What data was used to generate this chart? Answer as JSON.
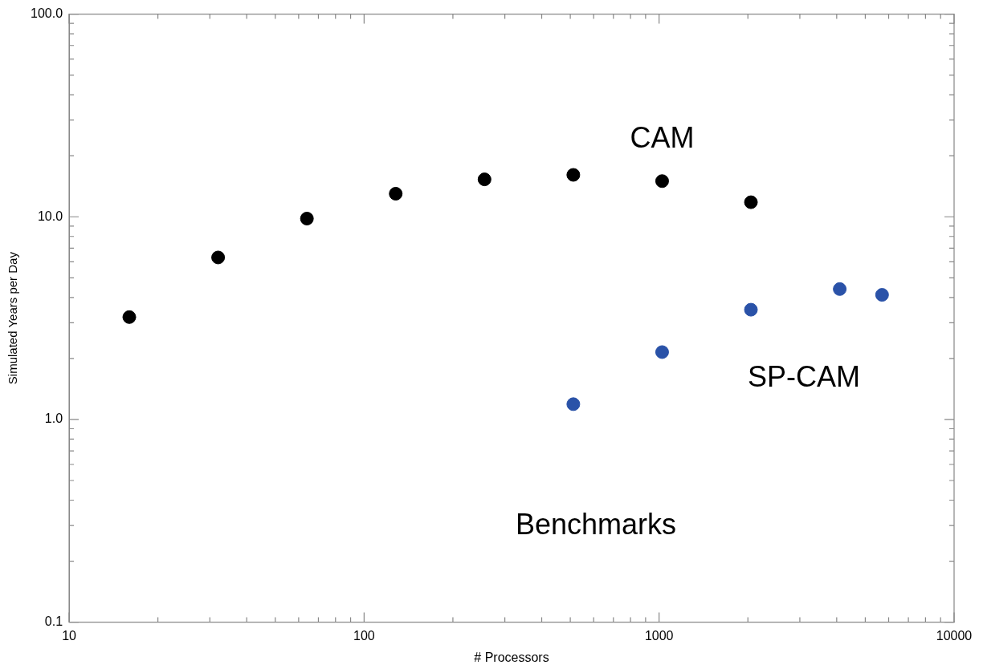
{
  "chart_data": {
    "type": "scatter",
    "xlabel": "# Processors",
    "ylabel": "Simulated Years per Day",
    "log": "xy",
    "grid": false,
    "legend": false,
    "marker": "circle",
    "xlim": [
      10,
      10000
    ],
    "ylim": [
      0.1,
      100
    ],
    "xticks": [
      10,
      {
        "value": 20,
        "label": null
      },
      {
        "value": 30,
        "label": null
      },
      {
        "value": 40,
        "label": null
      },
      {
        "value": 50,
        "label": null
      },
      {
        "value": 60,
        "label": null
      },
      {
        "value": 70,
        "label": null
      },
      {
        "value": 80,
        "label": null
      },
      {
        "value": 90,
        "label": null
      },
      100,
      {
        "value": 200,
        "label": null
      },
      {
        "value": 300,
        "label": null
      },
      {
        "value": 400,
        "label": null
      },
      {
        "value": 500,
        "label": null
      },
      {
        "value": 600,
        "label": null
      },
      {
        "value": 700,
        "label": null
      },
      {
        "value": 800,
        "label": null
      },
      {
        "value": 900,
        "label": null
      },
      1000,
      {
        "value": 2000,
        "label": null
      },
      {
        "value": 3000,
        "label": null
      },
      {
        "value": 4000,
        "label": null
      },
      {
        "value": 5000,
        "label": null
      },
      {
        "value": 6000,
        "label": null
      },
      {
        "value": 7000,
        "label": null
      },
      {
        "value": 8000,
        "label": null
      },
      {
        "value": 9000,
        "label": null
      },
      10000
    ],
    "yticks": [
      {
        "value": 0.1,
        "label": "0.1"
      },
      {
        "value": 0.2,
        "label": null
      },
      {
        "value": 0.3,
        "label": null
      },
      {
        "value": 0.4,
        "label": null
      },
      {
        "value": 0.5,
        "label": null
      },
      {
        "value": 0.6,
        "label": null
      },
      {
        "value": 0.7,
        "label": null
      },
      {
        "value": 0.8,
        "label": null
      },
      {
        "value": 0.9,
        "label": null
      },
      {
        "value": 1,
        "label": "1.0"
      },
      {
        "value": 2,
        "label": null
      },
      {
        "value": 3,
        "label": null
      },
      {
        "value": 4,
        "label": null
      },
      {
        "value": 5,
        "label": null
      },
      {
        "value": 6,
        "label": null
      },
      {
        "value": 7,
        "label": null
      },
      {
        "value": 8,
        "label": null
      },
      {
        "value": 9,
        "label": null
      },
      {
        "value": 10,
        "label": "10.0"
      },
      {
        "value": 20,
        "label": null
      },
      {
        "value": 30,
        "label": null
      },
      {
        "value": 40,
        "label": null
      },
      {
        "value": 50,
        "label": null
      },
      {
        "value": 60,
        "label": null
      },
      {
        "value": 70,
        "label": null
      },
      {
        "value": 80,
        "label": null
      },
      {
        "value": 90,
        "label": null
      },
      {
        "value": 100,
        "label": "100.0"
      }
    ],
    "series": [
      {
        "name": "CAM",
        "color": "#000000",
        "x": [
          16,
          32,
          64,
          128,
          256,
          512,
          1024,
          2048
        ],
        "values": [
          3.2,
          6.3,
          9.8,
          13.0,
          15.3,
          16.1,
          15.0,
          11.8
        ]
      },
      {
        "name": "SP-CAM",
        "color": "#2a52a8",
        "x": [
          512,
          1024,
          2048,
          4096,
          5700
        ],
        "values": [
          1.19,
          2.15,
          3.48,
          4.4,
          4.12
        ]
      }
    ],
    "annotations": [
      "Benchmarks"
    ]
  }
}
